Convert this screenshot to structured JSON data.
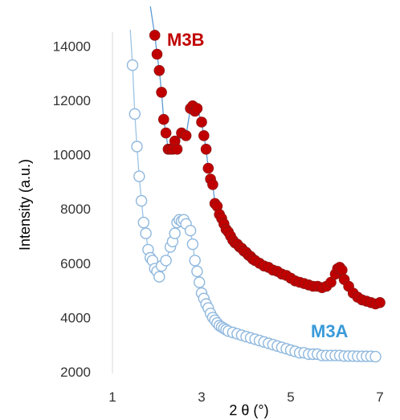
{
  "chart_data": {
    "type": "scatter",
    "xlabel": "2 θ (°)",
    "ylabel": "Intensity (a.u.)",
    "xlim": [
      1,
      7
    ],
    "ylim": [
      2000,
      14500
    ],
    "xticks": [
      "1",
      "3",
      "5",
      "7"
    ],
    "yticks": [
      "2000",
      "4000",
      "6000",
      "8000",
      "10000",
      "12000",
      "14000"
    ],
    "grid": false,
    "series": [
      {
        "name": "M3B",
        "color": "#c00000",
        "marker": "filled-circle",
        "points": [
          [
            1.95,
            14400
          ],
          [
            2.0,
            13700
          ],
          [
            2.05,
            13100
          ],
          [
            2.1,
            12300
          ],
          [
            2.15,
            11300
          ],
          [
            2.2,
            10800
          ],
          [
            2.25,
            10200
          ],
          [
            2.3,
            10200
          ],
          [
            2.35,
            10200
          ],
          [
            2.4,
            10500
          ],
          [
            2.45,
            10200
          ],
          [
            2.55,
            10800
          ],
          [
            2.65,
            10700
          ],
          [
            2.75,
            11700
          ],
          [
            2.8,
            11800
          ],
          [
            2.85,
            11600
          ],
          [
            2.9,
            11700
          ],
          [
            3.0,
            11200
          ],
          [
            3.05,
            10700
          ],
          [
            3.1,
            10200
          ],
          [
            3.15,
            9500
          ],
          [
            3.2,
            9100
          ],
          [
            3.25,
            8900
          ],
          [
            3.3,
            8200
          ],
          [
            3.35,
            8100
          ],
          [
            3.4,
            7800
          ],
          [
            3.45,
            7650
          ],
          [
            3.5,
            7450
          ],
          [
            3.55,
            7250
          ],
          [
            3.6,
            7150
          ],
          [
            3.65,
            7000
          ],
          [
            3.7,
            6850
          ],
          [
            3.75,
            6750
          ],
          [
            3.8,
            6700
          ],
          [
            3.85,
            6600
          ],
          [
            3.9,
            6550
          ],
          [
            3.95,
            6450
          ],
          [
            4.0,
            6400
          ],
          [
            4.05,
            6300
          ],
          [
            4.1,
            6250
          ],
          [
            4.15,
            6150
          ],
          [
            4.2,
            6100
          ],
          [
            4.3,
            6000
          ],
          [
            4.4,
            5900
          ],
          [
            4.5,
            5850
          ],
          [
            4.6,
            5750
          ],
          [
            4.7,
            5700
          ],
          [
            4.8,
            5600
          ],
          [
            4.9,
            5550
          ],
          [
            5.0,
            5450
          ],
          [
            5.1,
            5350
          ],
          [
            5.2,
            5300
          ],
          [
            5.3,
            5250
          ],
          [
            5.4,
            5200
          ],
          [
            5.5,
            5150
          ],
          [
            5.6,
            5150
          ],
          [
            5.7,
            5100
          ],
          [
            5.8,
            5150
          ],
          [
            5.9,
            5300
          ],
          [
            6.0,
            5600
          ],
          [
            6.05,
            5800
          ],
          [
            6.1,
            5850
          ],
          [
            6.15,
            5750
          ],
          [
            6.2,
            5400
          ],
          [
            6.3,
            5150
          ],
          [
            6.4,
            4900
          ],
          [
            6.5,
            4750
          ],
          [
            6.6,
            4650
          ],
          [
            6.7,
            4600
          ],
          [
            6.8,
            4550
          ],
          [
            6.9,
            4500
          ],
          [
            7.0,
            4550
          ]
        ]
      },
      {
        "name": "M3A",
        "color": "#3a9ad9",
        "marker": "open-circle",
        "points": [
          [
            1.45,
            13300
          ],
          [
            1.5,
            11500
          ],
          [
            1.55,
            10300
          ],
          [
            1.6,
            9200
          ],
          [
            1.65,
            8300
          ],
          [
            1.7,
            7500
          ],
          [
            1.75,
            7100
          ],
          [
            1.8,
            6500
          ],
          [
            1.85,
            6200
          ],
          [
            1.9,
            6100
          ],
          [
            1.95,
            5800
          ],
          [
            2.0,
            5700
          ],
          [
            2.05,
            5500
          ],
          [
            2.1,
            5900
          ],
          [
            2.2,
            6100
          ],
          [
            2.3,
            6600
          ],
          [
            2.35,
            6800
          ],
          [
            2.4,
            7100
          ],
          [
            2.45,
            7500
          ],
          [
            2.5,
            7600
          ],
          [
            2.55,
            7550
          ],
          [
            2.6,
            7600
          ],
          [
            2.65,
            7450
          ],
          [
            2.75,
            7200
          ],
          [
            2.8,
            6700
          ],
          [
            2.85,
            6100
          ],
          [
            2.9,
            5700
          ],
          [
            2.95,
            5300
          ],
          [
            3.0,
            4900
          ],
          [
            3.05,
            4700
          ],
          [
            3.1,
            4500
          ],
          [
            3.15,
            4350
          ],
          [
            3.2,
            4150
          ],
          [
            3.25,
            4000
          ],
          [
            3.3,
            3900
          ],
          [
            3.35,
            3800
          ],
          [
            3.4,
            3700
          ],
          [
            3.45,
            3650
          ],
          [
            3.5,
            3600
          ],
          [
            3.55,
            3550
          ],
          [
            3.6,
            3500
          ],
          [
            3.7,
            3450
          ],
          [
            3.8,
            3400
          ],
          [
            3.9,
            3350
          ],
          [
            4.0,
            3300
          ],
          [
            4.1,
            3250
          ],
          [
            4.2,
            3200
          ],
          [
            4.3,
            3150
          ],
          [
            4.4,
            3100
          ],
          [
            4.5,
            3050
          ],
          [
            4.6,
            3000
          ],
          [
            4.7,
            2950
          ],
          [
            4.8,
            2900
          ],
          [
            4.9,
            2850
          ],
          [
            5.0,
            2800
          ],
          [
            5.1,
            2750
          ],
          [
            5.2,
            2700
          ],
          [
            5.3,
            2700
          ],
          [
            5.4,
            2650
          ],
          [
            5.5,
            2650
          ],
          [
            5.6,
            2650
          ],
          [
            5.7,
            2600
          ],
          [
            5.8,
            2600
          ],
          [
            5.9,
            2600
          ],
          [
            6.0,
            2600
          ],
          [
            6.1,
            2600
          ],
          [
            6.2,
            2580
          ],
          [
            6.3,
            2580
          ],
          [
            6.4,
            2580
          ],
          [
            6.5,
            2570
          ],
          [
            6.6,
            2570
          ],
          [
            6.7,
            2570
          ],
          [
            6.8,
            2570
          ],
          [
            6.9,
            2560
          ]
        ]
      }
    ]
  }
}
